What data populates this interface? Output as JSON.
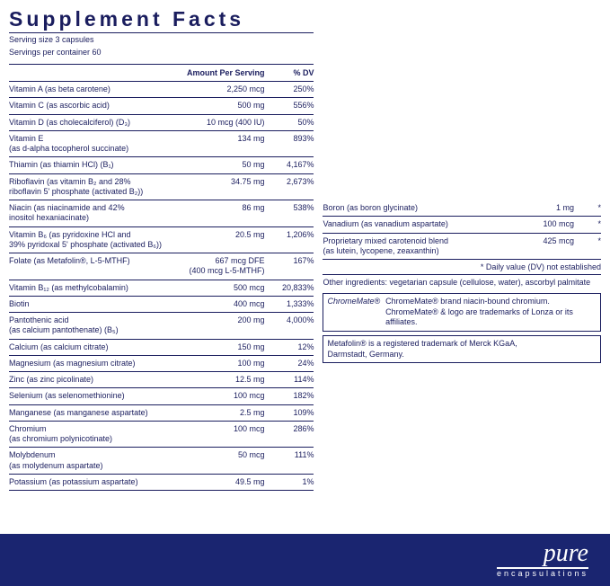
{
  "title": "Supplement Facts",
  "serving_size": "Serving size  3 capsules",
  "servings_per": "Servings per container  60",
  "headers": {
    "amount": "Amount Per Serving",
    "dv": "% DV"
  },
  "rows": [
    {
      "name": "Vitamin A (as beta carotene)",
      "amt": "2,250 mcg",
      "dv": "250%"
    },
    {
      "name": "Vitamin C (as ascorbic acid)",
      "amt": "500 mg",
      "dv": "556%"
    },
    {
      "name": "Vitamin D (as cholecalciferol) (D₃)",
      "amt": "10 mcg (400 IU)",
      "dv": "50%"
    },
    {
      "name": "Vitamin E\n(as d-alpha tocopherol succinate)",
      "amt": "134 mg",
      "dv": "893%"
    },
    {
      "name": "Thiamin (as thiamin HCl) (B₁)",
      "amt": "50 mg",
      "dv": "4,167%"
    },
    {
      "name": "Riboflavin (as vitamin B₂ and 28%\nriboflavin 5' phosphate (activated B₂))",
      "amt": "34.75 mg",
      "dv": "2,673%"
    },
    {
      "name": "Niacin (as niacinamide and 42%\ninositol hexaniacinate)",
      "amt": "86 mg",
      "dv": "538%"
    },
    {
      "name": "Vitamin B₆ (as pyridoxine HCl and\n39% pyridoxal 5' phosphate (activated B₆))",
      "amt": "20.5 mg",
      "dv": "1,206%"
    },
    {
      "name": "Folate (as Metafolin®, L-5-MTHF)",
      "amt": "667 mcg DFE\n(400 mcg L-5-MTHF)",
      "dv": "167%"
    },
    {
      "name": "Vitamin B₁₂ (as methylcobalamin)",
      "amt": "500 mcg",
      "dv": "20,833%"
    },
    {
      "name": "Biotin",
      "amt": "400 mcg",
      "dv": "1,333%"
    },
    {
      "name": "Pantothenic acid\n(as calcium pantothenate) (B₅)",
      "amt": "200 mg",
      "dv": "4,000%"
    },
    {
      "name": "Calcium (as calcium citrate)",
      "amt": "150 mg",
      "dv": "12%"
    },
    {
      "name": "Magnesium (as magnesium citrate)",
      "amt": "100 mg",
      "dv": "24%"
    },
    {
      "name": "Zinc (as zinc picolinate)",
      "amt": "12.5 mg",
      "dv": "114%"
    },
    {
      "name": "Selenium (as selenomethionine)",
      "amt": "100 mcg",
      "dv": "182%"
    },
    {
      "name": "Manganese (as manganese aspartate)",
      "amt": "2.5 mg",
      "dv": "109%"
    },
    {
      "name": "Chromium\n(as chromium polynicotinate)",
      "amt": "100 mcg",
      "dv": "286%"
    },
    {
      "name": "Molybdenum\n(as molydenum aspartate)",
      "amt": "50 mcg",
      "dv": "111%"
    },
    {
      "name": "Potassium (as potassium aspartate)",
      "amt": "49.5 mg",
      "dv": "1%"
    }
  ],
  "right_rows": [
    {
      "name": "Boron (as boron glycinate)",
      "amt": "1 mg",
      "dv": "*"
    },
    {
      "name": "Vanadium (as vanadium aspartate)",
      "amt": "100 mcg",
      "dv": "*"
    },
    {
      "name": "Proprietary mixed carotenoid blend\n(as lutein, lycopene, zeaxanthin)",
      "amt": "425 mcg",
      "dv": "*"
    }
  ],
  "dv_note": "*  Daily value (DV) not established",
  "other_ing": "Other ingredients: vegetarian capsule (cellulose, water), ascorbyl palmitate",
  "chromemate_label": "ChromeMate",
  "chromemate_text": "ChromeMate® brand niacin-bound chromium.\nChromeMate® & logo are trademarks of Lonza or its affiliates.",
  "metafolin": "Metafolin® is a registered trademark of Merck KGaA,\nDarmstadt, Germany.",
  "brand_main": "pure",
  "brand_sub": "encapsulations",
  "colors": {
    "ink": "#1a1d5e",
    "footer": "#1a2570",
    "white": "#ffffff"
  }
}
